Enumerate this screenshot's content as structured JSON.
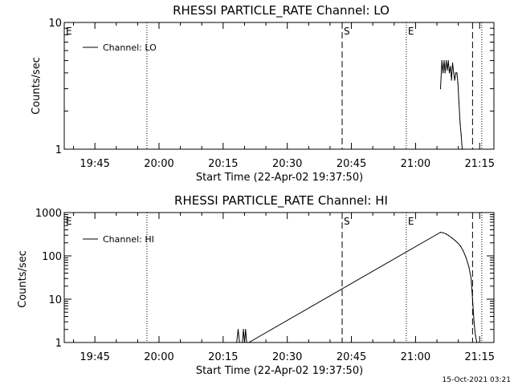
{
  "footer": {
    "timestamp": "15-Oct-2021 03:21"
  },
  "chart_data": [
    {
      "type": "line",
      "title": "RHESSI PARTICLE_RATE Channel: LO",
      "xlabel": "Start Time (22-Apr-02 19:37:50)",
      "ylabel": "Counts/sec",
      "yscale": "log",
      "ylim": [
        1,
        10
      ],
      "yticks": [
        {
          "v": 1,
          "label": "1"
        },
        {
          "v": 10,
          "label": "10"
        }
      ],
      "xlim": [
        "19:37:50",
        "21:18:20"
      ],
      "xticks": [
        "19:45",
        "20:00",
        "20:15",
        "20:30",
        "20:45",
        "21:00",
        "21:15"
      ],
      "legend": "top-left",
      "series": [
        {
          "name": "Channel: LO",
          "x": [
            "21:05:50",
            "21:06:10",
            "21:06:25",
            "21:06:40",
            "21:06:55",
            "21:07:10",
            "21:07:25",
            "21:07:40",
            "21:07:55",
            "21:08:10",
            "21:08:25",
            "21:08:40",
            "21:08:55",
            "21:09:10",
            "21:09:25",
            "21:09:40",
            "21:09:55",
            "21:10:10",
            "21:10:25",
            "21:10:40",
            "21:10:55",
            "21:11:10",
            "21:11:25"
          ],
          "y": [
            3.0,
            5.0,
            4.0,
            5.0,
            4.0,
            5.0,
            4.2,
            5.0,
            4.0,
            4.5,
            3.5,
            4.8,
            4.0,
            3.5,
            4.0,
            4.0,
            3.3,
            2.3,
            1.6,
            1.3,
            1.0,
            1.0,
            1.0
          ]
        }
      ],
      "annotations": [
        {
          "label": "E",
          "x": "19:37:50",
          "style": "dotted"
        },
        {
          "label": "",
          "x": "19:57:10",
          "style": "dotted"
        },
        {
          "label": "S",
          "x": "20:42:50",
          "style": "dashed"
        },
        {
          "label": "E",
          "x": "20:57:50",
          "style": "dotted"
        },
        {
          "label": "",
          "x": "21:13:20",
          "style": "dashed"
        },
        {
          "label": "",
          "x": "21:15:30",
          "style": "dotted"
        }
      ]
    },
    {
      "type": "line",
      "title": "RHESSI PARTICLE_RATE Channel: HI",
      "xlabel": "Start Time (22-Apr-02 19:37:50)",
      "ylabel": "Counts/sec",
      "yscale": "log",
      "ylim": [
        1,
        1000
      ],
      "yticks": [
        {
          "v": 1,
          "label": "1"
        },
        {
          "v": 10,
          "label": "10"
        },
        {
          "v": 100,
          "label": "100"
        },
        {
          "v": 1000,
          "label": "1000"
        }
      ],
      "xlim": [
        "19:37:50",
        "21:18:20"
      ],
      "xticks": [
        "19:45",
        "20:00",
        "20:15",
        "20:30",
        "20:45",
        "21:00",
        "21:15"
      ],
      "legend": "top-left",
      "series": [
        {
          "name": "Channel: HI",
          "x": [
            "20:17:50",
            "20:18:10",
            "20:18:30",
            "20:18:50",
            "20:19:30",
            "20:19:45",
            "20:20:00",
            "20:20:15",
            "20:20:30",
            "20:20:45",
            "20:21:00",
            "21:05:50",
            "21:06:30",
            "21:07:10",
            "21:07:50",
            "21:08:30",
            "21:09:10",
            "21:09:50",
            "21:10:30",
            "21:11:10",
            "21:11:50",
            "21:12:30",
            "21:13:00",
            "21:13:20",
            "21:13:40",
            "21:14:00",
            "21:14:20"
          ],
          "y": [
            1,
            1,
            2,
            1,
            1,
            2,
            1,
            2,
            1,
            1,
            1,
            350,
            340,
            320,
            290,
            260,
            230,
            200,
            170,
            130,
            90,
            55,
            30,
            10,
            3,
            1.5,
            1
          ]
        }
      ],
      "annotations": [
        {
          "label": "E",
          "x": "19:37:50",
          "style": "dotted"
        },
        {
          "label": "",
          "x": "19:57:10",
          "style": "dotted"
        },
        {
          "label": "S",
          "x": "20:42:50",
          "style": "dashed"
        },
        {
          "label": "E",
          "x": "20:57:50",
          "style": "dotted"
        },
        {
          "label": "",
          "x": "21:13:20",
          "style": "dashed"
        },
        {
          "label": "",
          "x": "21:15:30",
          "style": "dotted"
        }
      ]
    }
  ]
}
